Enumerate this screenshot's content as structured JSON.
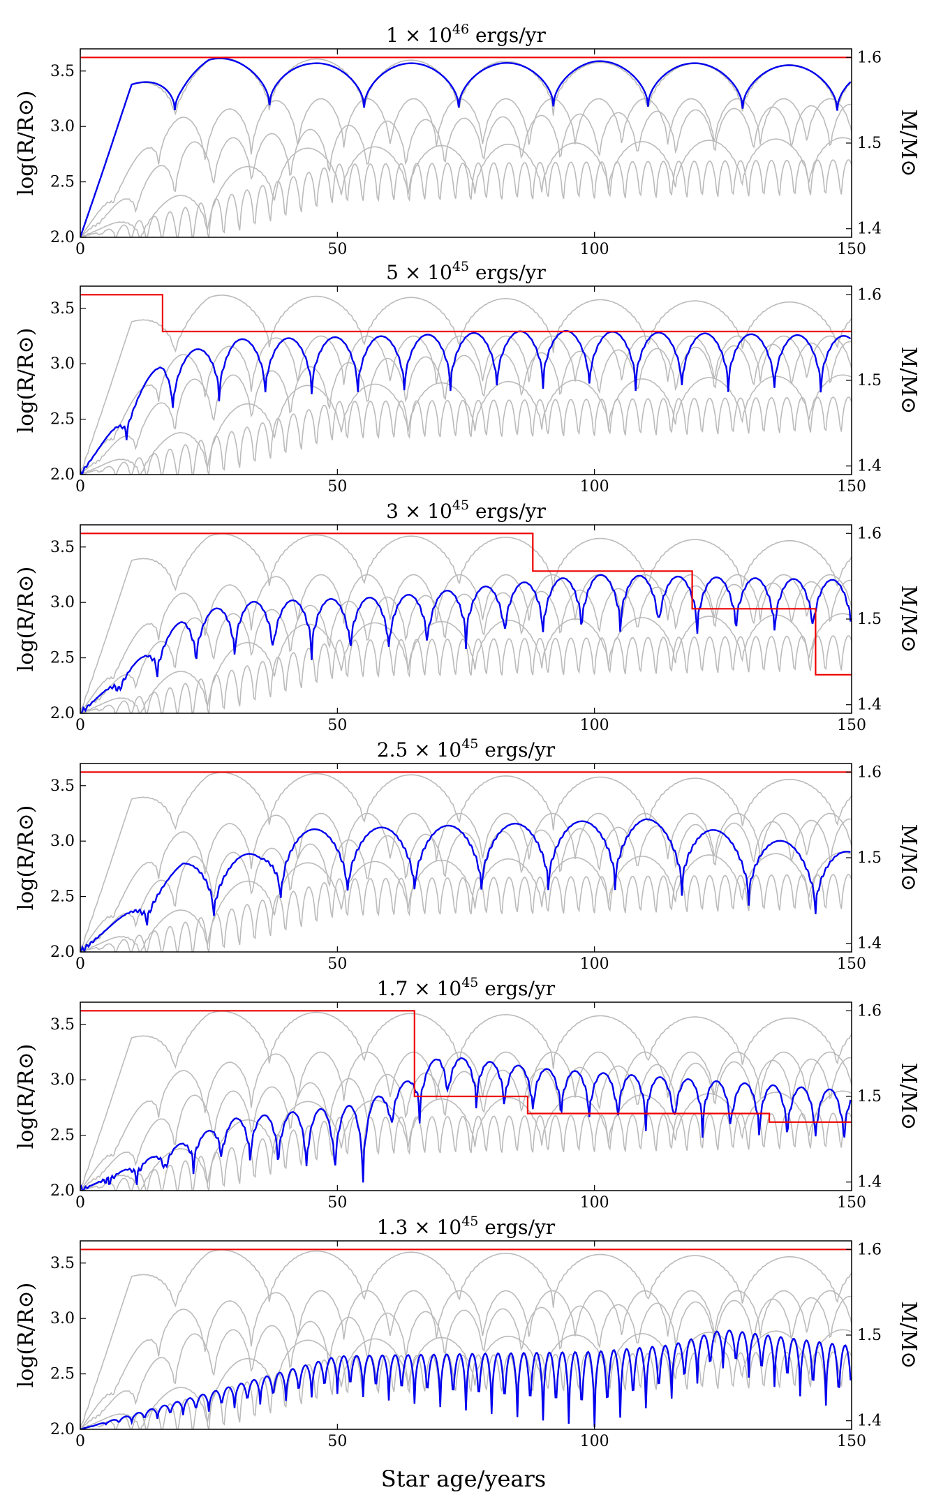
{
  "chart_data": {
    "type": "line",
    "xlabel": "Star age/years",
    "xlim": [
      0,
      150
    ],
    "xticks": [
      "0",
      "50",
      "100",
      "150"
    ],
    "ylabel_left": "log(R/R⊙)",
    "ylim_left": [
      2.0,
      3.7
    ],
    "yticks_left": [
      "2.0",
      "2.5",
      "3.0",
      "3.5"
    ],
    "ylabel_right": "M/M⊙",
    "ylim_right": [
      1.39,
      1.61
    ],
    "yticks_right": [
      "1.4",
      "1.5",
      "1.6"
    ],
    "series_legend": [
      "radius (highlighted)",
      "radius (other panels, grey)",
      "mass"
    ],
    "colors": {
      "radius": "#0000ee",
      "other": "#bbbbbb",
      "mass": "#ee0000"
    },
    "panels": [
      {
        "title_coef": "1",
        "title_exp": "46",
        "title_suffix": "ergs/yr",
        "period": 18.4,
        "base": 2.0,
        "noise": 0.0,
        "radius_envelope": [
          [
            0,
            0
          ],
          [
            10,
            1.38
          ],
          [
            25,
            1.62
          ],
          [
            45,
            1.57
          ],
          [
            80,
            1.57
          ],
          [
            100,
            1.59
          ],
          [
            150,
            1.54
          ]
        ],
        "radius_minima": [
          [
            0,
            0
          ],
          [
            20,
            0.4
          ],
          [
            150,
            0.4
          ]
        ],
        "mass_steps": [
          [
            0,
            1.6
          ]
        ]
      },
      {
        "title_coef": "5",
        "title_exp": "45",
        "title_suffix": "ergs/yr",
        "period": 9.0,
        "base": 2.0,
        "noise": 0.03,
        "radius_envelope": [
          [
            0,
            0
          ],
          [
            16,
            1.05
          ],
          [
            30,
            1.22
          ],
          [
            60,
            1.25
          ],
          [
            90,
            1.3
          ],
          [
            150,
            1.25
          ]
        ],
        "radius_minima": [
          [
            0,
            0
          ],
          [
            18,
            0.5
          ],
          [
            150,
            0.5
          ]
        ],
        "mass_steps": [
          [
            0,
            1.6
          ],
          [
            16,
            1.557
          ]
        ]
      },
      {
        "title_coef": "3",
        "title_exp": "45",
        "title_suffix": "ergs/yr",
        "period": 7.5,
        "base": 2.0,
        "noise": 0.05,
        "radius_envelope": [
          [
            0,
            0
          ],
          [
            20,
            0.85
          ],
          [
            30,
            1.0
          ],
          [
            60,
            1.05
          ],
          [
            100,
            1.25
          ],
          [
            150,
            1.2
          ]
        ],
        "radius_minima": [
          [
            0,
            0
          ],
          [
            25,
            0.5
          ],
          [
            150,
            0.5
          ]
        ],
        "mass_steps": [
          [
            0,
            1.6
          ],
          [
            88,
            1.556
          ],
          [
            119,
            1.512
          ],
          [
            143,
            1.435
          ]
        ]
      },
      {
        "title_coef": "2.5",
        "title_exp": "45",
        "title_suffix": "ergs/yr",
        "period": 13.0,
        "base": 2.0,
        "noise": 0.04,
        "radius_envelope": [
          [
            0,
            0
          ],
          [
            20,
            0.8
          ],
          [
            35,
            0.9
          ],
          [
            40,
            1.1
          ],
          [
            80,
            1.15
          ],
          [
            110,
            1.2
          ],
          [
            150,
            0.9
          ]
        ],
        "radius_minima": [
          [
            0,
            0
          ],
          [
            30,
            0.6
          ],
          [
            150,
            0.6
          ]
        ],
        "mass_steps": [
          [
            0,
            1.6
          ]
        ]
      },
      {
        "title_coef": "1.7",
        "title_exp": "45",
        "title_suffix": "ergs/yr",
        "period": 5.5,
        "base": 2.0,
        "noise": 0.06,
        "radius_envelope": [
          [
            0,
            0
          ],
          [
            30,
            0.65
          ],
          [
            55,
            0.78
          ],
          [
            64,
            1.0
          ],
          [
            70,
            1.22
          ],
          [
            90,
            1.1
          ],
          [
            150,
            0.9
          ]
        ],
        "radius_minima": [
          [
            0,
            0
          ],
          [
            55,
            0.7
          ],
          [
            60,
            0.4
          ],
          [
            150,
            0.5
          ]
        ],
        "mass_steps": [
          [
            0,
            1.6
          ],
          [
            65,
            1.5
          ],
          [
            87,
            1.48
          ],
          [
            134,
            1.47
          ]
        ]
      },
      {
        "title_coef": "1.3",
        "title_exp": "45",
        "title_suffix": "ergs/yr",
        "period": 2.5,
        "base": 2.0,
        "noise": 0.0,
        "radius_envelope": [
          [
            0,
            0
          ],
          [
            50,
            0.66
          ],
          [
            100,
            0.7
          ],
          [
            115,
            0.76
          ],
          [
            125,
            0.9
          ],
          [
            150,
            0.75
          ]
        ],
        "radius_minima": [
          [
            0,
            0
          ],
          [
            100,
            0.68
          ],
          [
            110,
            0.55
          ],
          [
            125,
            0.35
          ],
          [
            150,
            0.62
          ]
        ],
        "mass_steps": [
          [
            0,
            1.6
          ]
        ]
      }
    ],
    "grey_curves": [
      {
        "amp": [
          [
            0,
            0
          ],
          [
            10,
            1.38
          ],
          [
            25,
            1.62
          ],
          [
            150,
            1.55
          ]
        ],
        "period": 18.4,
        "phase": 0.0
      },
      {
        "amp": [
          [
            0,
            0
          ],
          [
            16,
            1.05
          ],
          [
            40,
            1.25
          ],
          [
            150,
            1.25
          ]
        ],
        "period": 9.0,
        "phase": 0.3
      },
      {
        "amp": [
          [
            0,
            0
          ],
          [
            20,
            0.85
          ],
          [
            60,
            1.05
          ],
          [
            150,
            1.2
          ]
        ],
        "period": 7.5,
        "phase": 0.55
      },
      {
        "amp": [
          [
            0,
            0
          ],
          [
            40,
            0.8
          ],
          [
            150,
            0.9
          ]
        ],
        "period": 13.0,
        "phase": 0.1
      },
      {
        "amp": [
          [
            0,
            0
          ],
          [
            50,
            0.66
          ],
          [
            150,
            0.7
          ]
        ],
        "period": 3.0,
        "phase": 0.7
      }
    ]
  }
}
